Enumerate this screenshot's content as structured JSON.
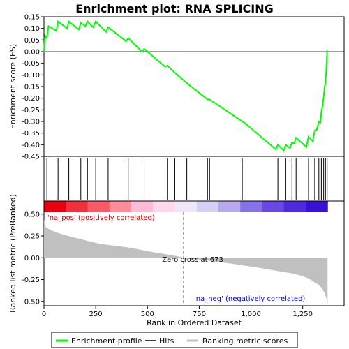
{
  "chart_data": {
    "type": "line",
    "title": "Enrichment plot: RNA SPLICING",
    "es_panel": {
      "ylabel": "Enrichment score (ES)",
      "ylim": [
        -0.45,
        0.15
      ],
      "yticks": [
        "0.15",
        "0.10",
        "0.05",
        "0.00",
        "-0.05",
        "-0.10",
        "-0.15",
        "-0.20",
        "-0.25",
        "-0.30",
        "-0.35",
        "-0.40",
        "-0.45"
      ],
      "ytick_values": [
        0.15,
        0.1,
        0.05,
        0.0,
        -0.05,
        -0.1,
        -0.15,
        -0.2,
        -0.25,
        -0.3,
        -0.35,
        -0.4,
        -0.45
      ],
      "series": [
        {
          "name": "Enrichment profile",
          "color": "#00ff00",
          "x": [
            0,
            5,
            14,
            22,
            60,
            68,
            112,
            120,
            168,
            178,
            200,
            210,
            238,
            250,
            300,
            310,
            397,
            407,
            474,
            484,
            586,
            596,
            632,
            690,
            790,
            800,
            958,
            968,
            1120,
            1130,
            1158,
            1168,
            1188,
            1198,
            1208,
            1218,
            1268,
            1278,
            1298,
            1308,
            1318,
            1328,
            1336,
            1340,
            1346,
            1351,
            1356,
            1360,
            1364,
            1368
          ],
          "y": [
            0.0,
            0.07,
            0.06,
            0.11,
            0.09,
            0.13,
            0.1,
            0.13,
            0.095,
            0.125,
            0.11,
            0.13,
            0.105,
            0.13,
            0.085,
            0.105,
            0.045,
            0.058,
            0.0,
            0.012,
            -0.065,
            -0.06,
            -0.09,
            -0.135,
            -0.205,
            -0.205,
            -0.3,
            -0.305,
            -0.42,
            -0.4,
            -0.425,
            -0.4,
            -0.415,
            -0.39,
            -0.395,
            -0.37,
            -0.41,
            -0.365,
            -0.385,
            -0.34,
            -0.335,
            -0.3,
            -0.305,
            -0.26,
            -0.23,
            -0.195,
            -0.15,
            -0.135,
            -0.075,
            0.005
          ]
        }
      ]
    },
    "hits": [
      14,
      68,
      120,
      178,
      210,
      250,
      310,
      407,
      484,
      596,
      632,
      690,
      790,
      800,
      958,
      1130,
      1168,
      1198,
      1218,
      1278,
      1308,
      1328,
      1340,
      1351,
      1360,
      1368
    ],
    "hits_legend": "Hits",
    "heatmap_colors": [
      "#e8000c",
      "#f2303c",
      "#fa5a66",
      "#ff8c96",
      "#ffbcd4",
      "#ffd8ec",
      "#f0e6fa",
      "#d8cff5",
      "#b8a8f0",
      "#8872ea",
      "#6a48e6",
      "#5028e0",
      "#3a10d8"
    ],
    "metric_panel": {
      "ylabel": "Ranked list metric (PreRanked)",
      "ylim": [
        -0.55,
        0.65
      ],
      "yticks": [
        "0.50",
        "0.25",
        "0.00",
        "-0.25",
        "-0.50"
      ],
      "ytick_values": [
        0.5,
        0.25,
        0.0,
        -0.25,
        -0.5
      ],
      "series": [
        {
          "name": "Ranking metric scores",
          "color": "#c0c0c0",
          "x": [
            0,
            3,
            10,
            30,
            60,
            100,
            150,
            200,
            250,
            300,
            350,
            400,
            450,
            500,
            550,
            600,
            650,
            673,
            700,
            750,
            800,
            850,
            900,
            950,
            1000,
            1050,
            1100,
            1150,
            1200,
            1250,
            1280,
            1300,
            1320,
            1340,
            1355,
            1365,
            1370
          ],
          "y": [
            0.44,
            0.39,
            0.35,
            0.32,
            0.29,
            0.26,
            0.23,
            0.2,
            0.17,
            0.15,
            0.135,
            0.12,
            0.1,
            0.075,
            0.055,
            0.035,
            0.015,
            0.0,
            -0.01,
            -0.02,
            -0.035,
            -0.05,
            -0.065,
            -0.085,
            -0.1,
            -0.12,
            -0.14,
            -0.16,
            -0.18,
            -0.21,
            -0.24,
            -0.27,
            -0.3,
            -0.34,
            -0.4,
            -0.47,
            -0.54
          ]
        }
      ],
      "pos_label": "'na_pos' (positively correlated)",
      "neg_label": "'na_neg' (negatively correlated)",
      "zero_cross_label": "Zero cross at 673",
      "zero_cross": 673
    },
    "xlabel": "Rank in Ordered Dataset",
    "xlim": [
      0,
      1450
    ],
    "xticks": [
      "0",
      "250",
      "500",
      "750",
      "1,000",
      "1,250"
    ],
    "xtick_values": [
      0,
      250,
      500,
      750,
      1000,
      1250
    ],
    "legend": [
      {
        "label": "Enrichment profile",
        "color": "#00ff00"
      },
      {
        "label": "Hits",
        "color": "#000000"
      },
      {
        "label": "Ranking metric scores",
        "color": "#c0c0c0"
      }
    ]
  }
}
